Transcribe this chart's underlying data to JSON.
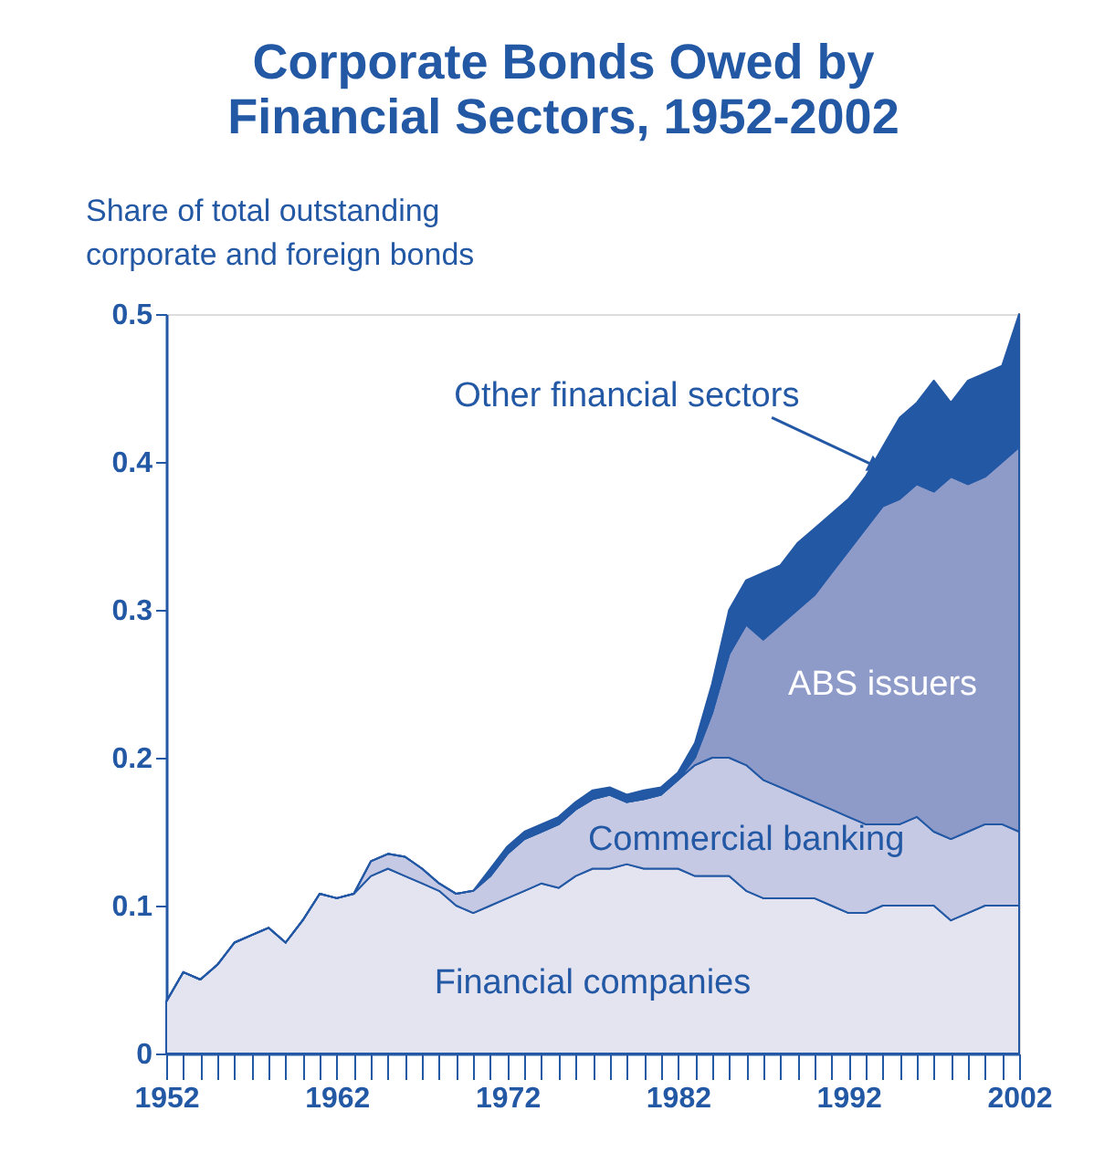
{
  "chart_data": {
    "type": "area",
    "stacked": true,
    "title": "Corporate Bonds Owed by\nFinancial Sectors, 1952-2002",
    "ylabel": "Share of total outstanding\ncorporate and foreign bonds",
    "x": [
      1952,
      1953,
      1954,
      1955,
      1956,
      1957,
      1958,
      1959,
      1960,
      1961,
      1962,
      1963,
      1964,
      1965,
      1966,
      1967,
      1968,
      1969,
      1970,
      1971,
      1972,
      1973,
      1974,
      1975,
      1976,
      1977,
      1978,
      1979,
      1980,
      1981,
      1982,
      1983,
      1984,
      1985,
      1986,
      1987,
      1988,
      1989,
      1990,
      1991,
      1992,
      1993,
      1994,
      1995,
      1996,
      1997,
      1998,
      1999,
      2000,
      2001,
      2002
    ],
    "series": [
      {
        "name": "Financial companies",
        "color": "#e3e4f0",
        "values": [
          0.035,
          0.055,
          0.05,
          0.06,
          0.075,
          0.08,
          0.085,
          0.075,
          0.09,
          0.108,
          0.105,
          0.108,
          0.12,
          0.125,
          0.12,
          0.115,
          0.11,
          0.1,
          0.095,
          0.1,
          0.105,
          0.11,
          0.115,
          0.112,
          0.12,
          0.125,
          0.125,
          0.128,
          0.125,
          0.125,
          0.125,
          0.12,
          0.12,
          0.12,
          0.11,
          0.105,
          0.105,
          0.105,
          0.105,
          0.1,
          0.095,
          0.095,
          0.1,
          0.1,
          0.1,
          0.1,
          0.09,
          0.095,
          0.1,
          0.1,
          0.1
        ]
      },
      {
        "name": "Commercial banking",
        "color": "#c6c9e3",
        "values": [
          0,
          0,
          0,
          0,
          0,
          0,
          0,
          0,
          0,
          0,
          0,
          0,
          0.01,
          0.01,
          0.013,
          0.01,
          0.005,
          0.008,
          0.015,
          0.02,
          0.03,
          0.035,
          0.035,
          0.043,
          0.045,
          0.047,
          0.05,
          0.042,
          0.047,
          0.05,
          0.06,
          0.075,
          0.08,
          0.08,
          0.085,
          0.08,
          0.075,
          0.07,
          0.065,
          0.065,
          0.065,
          0.06,
          0.055,
          0.055,
          0.06,
          0.05,
          0.055,
          0.055,
          0.055,
          0.055,
          0.05
        ]
      },
      {
        "name": "ABS issuers",
        "color": "#8e9bc9",
        "values": [
          0,
          0,
          0,
          0,
          0,
          0,
          0,
          0,
          0,
          0,
          0,
          0,
          0,
          0,
          0,
          0,
          0,
          0,
          0,
          0,
          0,
          0,
          0,
          0,
          0,
          0,
          0,
          0,
          0,
          0,
          0,
          0.005,
          0.03,
          0.07,
          0.095,
          0.095,
          0.11,
          0.125,
          0.14,
          0.16,
          0.18,
          0.2,
          0.215,
          0.22,
          0.225,
          0.23,
          0.245,
          0.235,
          0.235,
          0.245,
          0.26
        ]
      },
      {
        "name": "Other financial sectors",
        "color": "#2358a5",
        "values": [
          0,
          0,
          0,
          0,
          0,
          0,
          0,
          0,
          0,
          0,
          0,
          0,
          0,
          0,
          0,
          0,
          0,
          0,
          0,
          0.005,
          0.005,
          0.005,
          0.005,
          0.005,
          0.005,
          0.006,
          0.005,
          0.005,
          0.006,
          0.005,
          0.005,
          0.01,
          0.02,
          0.03,
          0.03,
          0.045,
          0.04,
          0.045,
          0.045,
          0.04,
          0.035,
          0.035,
          0.04,
          0.055,
          0.055,
          0.075,
          0.05,
          0.07,
          0.07,
          0.065,
          0.09
        ]
      }
    ],
    "xlim": [
      1952,
      2002
    ],
    "xticks": [
      1952,
      {
        "value": 1953,
        "label": null
      },
      {
        "value": 1954,
        "label": null
      },
      {
        "value": 1955,
        "label": null
      },
      {
        "value": 1956,
        "label": null
      },
      {
        "value": 1957,
        "label": null
      },
      {
        "value": 1958,
        "label": null
      },
      {
        "value": 1959,
        "label": null
      },
      {
        "value": 1960,
        "label": null
      },
      {
        "value": 1961,
        "label": null
      },
      1962,
      {
        "value": 1963,
        "label": null
      },
      {
        "value": 1964,
        "label": null
      },
      {
        "value": 1965,
        "label": null
      },
      {
        "value": 1966,
        "label": null
      },
      {
        "value": 1967,
        "label": null
      },
      {
        "value": 1968,
        "label": null
      },
      {
        "value": 1969,
        "label": null
      },
      {
        "value": 1970,
        "label": null
      },
      {
        "value": 1971,
        "label": null
      },
      1972,
      {
        "value": 1973,
        "label": null
      },
      {
        "value": 1974,
        "label": null
      },
      {
        "value": 1975,
        "label": null
      },
      {
        "value": 1976,
        "label": null
      },
      {
        "value": 1977,
        "label": null
      },
      {
        "value": 1978,
        "label": null
      },
      {
        "value": 1979,
        "label": null
      },
      {
        "value": 1980,
        "label": null
      },
      {
        "value": 1981,
        "label": null
      },
      1982,
      {
        "value": 1983,
        "label": null
      },
      {
        "value": 1984,
        "label": null
      },
      {
        "value": 1985,
        "label": null
      },
      {
        "value": 1986,
        "label": null
      },
      {
        "value": 1987,
        "label": null
      },
      {
        "value": 1988,
        "label": null
      },
      {
        "value": 1989,
        "label": null
      },
      {
        "value": 1990,
        "label": null
      },
      {
        "value": 1991,
        "label": null
      },
      1992,
      {
        "value": 1993,
        "label": null
      },
      {
        "value": 1994,
        "label": null
      },
      {
        "value": 1995,
        "label": null
      },
      {
        "value": 1996,
        "label": null
      },
      {
        "value": 1997,
        "label": null
      },
      {
        "value": 1998,
        "label": null
      },
      {
        "value": 1999,
        "label": null
      },
      {
        "value": 2000,
        "label": null
      },
      {
        "value": 2001,
        "label": null
      },
      2002
    ],
    "ylim": [
      0,
      0.5
    ],
    "yticks": [
      0,
      0.1,
      0.2,
      0.3,
      0.4,
      0.5
    ],
    "grid": false,
    "legend": false
  }
}
